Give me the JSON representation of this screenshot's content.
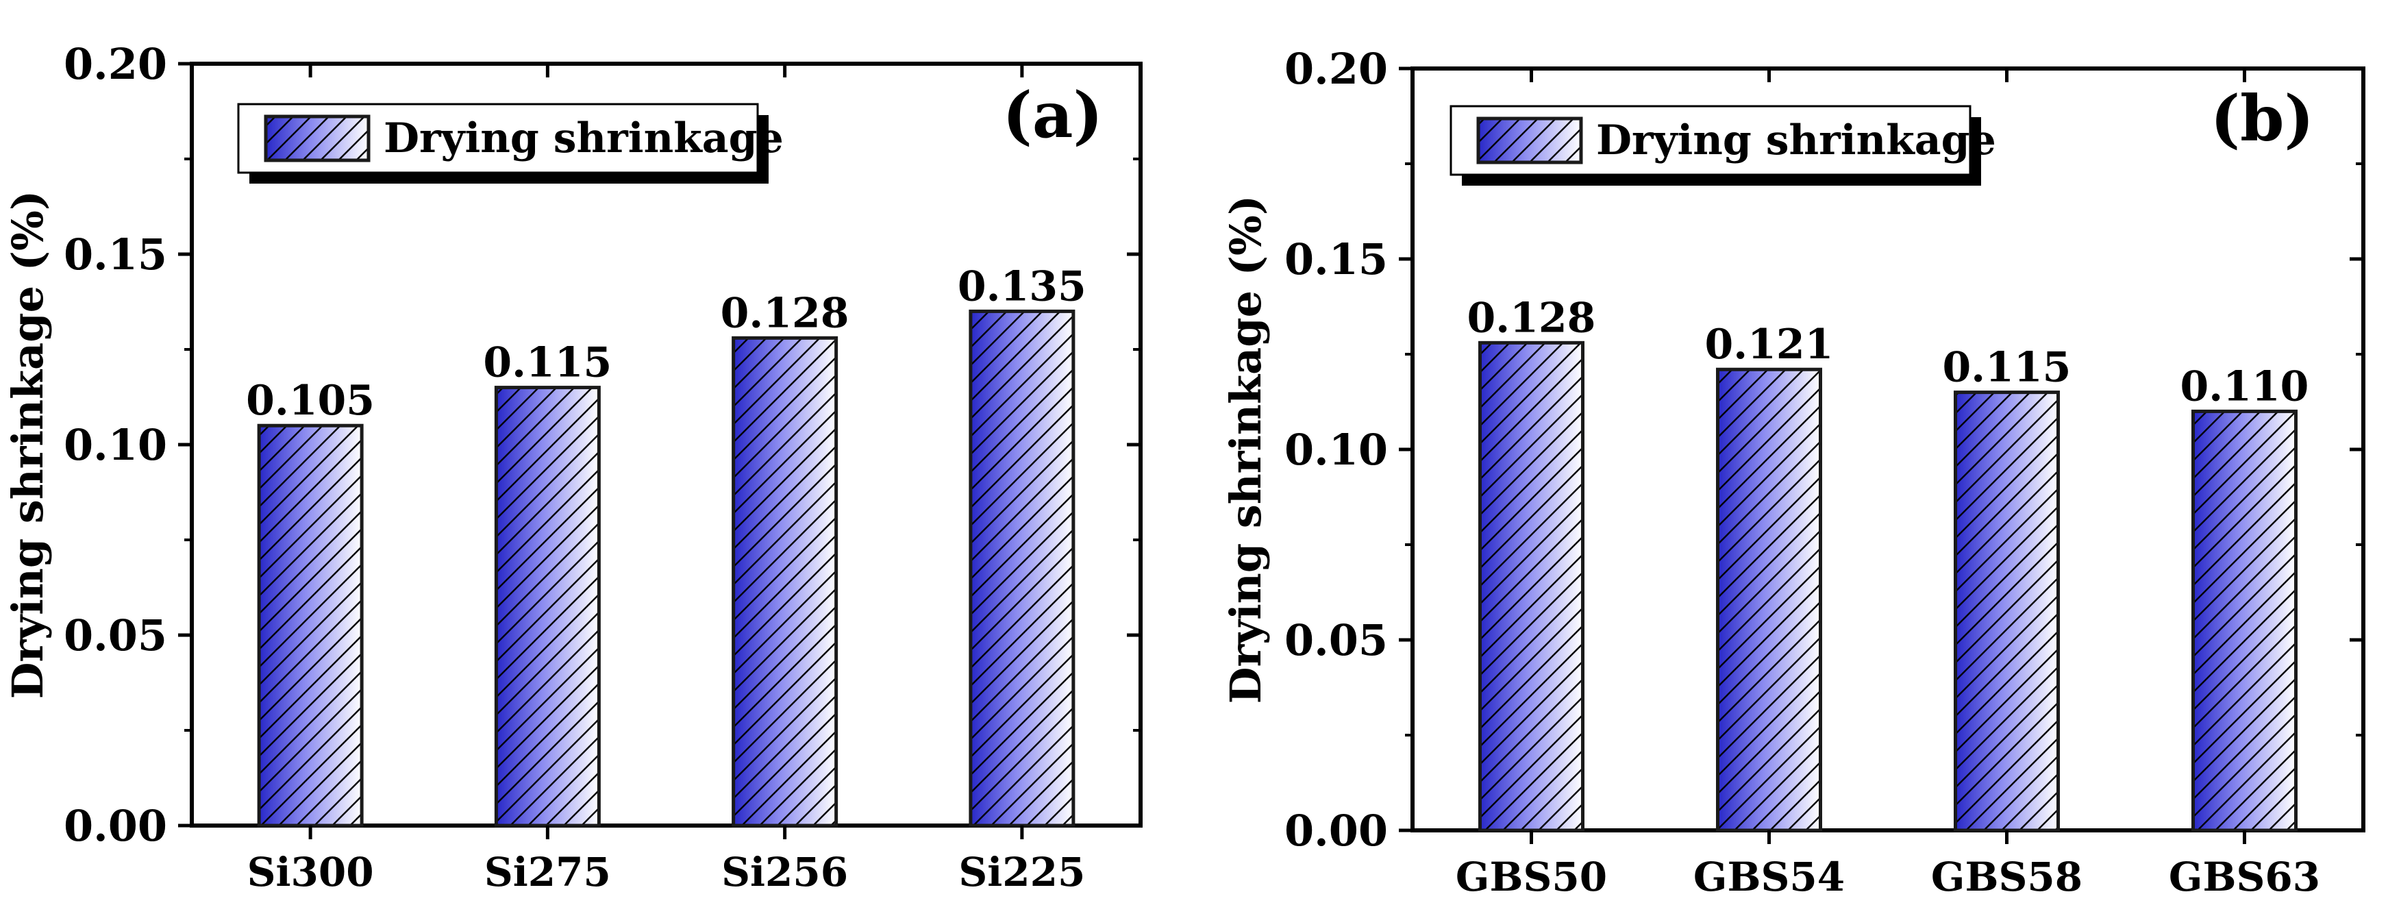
{
  "colors": {
    "bar_edge": "#1a1a1a",
    "bar_dark": "#2828c8",
    "bar_mid": "#8c8cf0",
    "bar_light": "#ffffff",
    "hatch": "#000000",
    "axis": "#000000"
  },
  "chart_data": [
    {
      "type": "bar",
      "panel_label": "(a)",
      "ylabel": "Drying shrinkage (%)",
      "xlabel": "",
      "legend": [
        "Drying shrinkage"
      ],
      "legend_position": "top-left",
      "ylim": [
        0,
        0.2
      ],
      "yticks": [
        "0.00",
        "0.05",
        "0.10",
        "0.15",
        "0.20"
      ],
      "grid": false,
      "categories": [
        "Si300",
        "Si275",
        "Si256",
        "Si225"
      ],
      "values": [
        0.105,
        0.115,
        0.128,
        0.135
      ],
      "value_labels": [
        "0.105",
        "0.115",
        "0.128",
        "0.135"
      ]
    },
    {
      "type": "bar",
      "panel_label": "(b)",
      "ylabel": "Drying shrinkage (%)",
      "xlabel": "",
      "legend": [
        "Drying shrinkage"
      ],
      "legend_position": "top-left",
      "ylim": [
        0,
        0.2
      ],
      "yticks": [
        "0.00",
        "0.05",
        "0.10",
        "0.15",
        "0.20"
      ],
      "grid": false,
      "categories": [
        "GBS50",
        "GBS54",
        "GBS58",
        "GBS63"
      ],
      "values": [
        0.128,
        0.121,
        0.115,
        0.11
      ],
      "value_labels": [
        "0.128",
        "0.121",
        "0.115",
        "0.110"
      ]
    }
  ]
}
